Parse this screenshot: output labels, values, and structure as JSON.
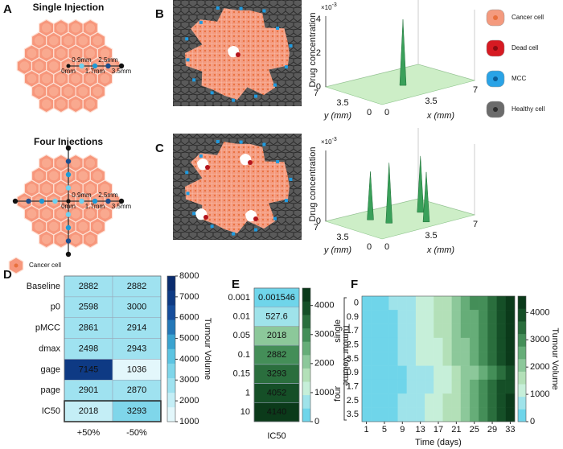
{
  "panel_labels": [
    "A",
    "B",
    "C",
    "D",
    "E",
    "F"
  ],
  "panel_a": {
    "single_title": "Single Injection",
    "four_title": "Four Injections",
    "distances": [
      "0mm",
      "0.9mm",
      "1.7mm",
      "2.5mm",
      "3.5mm"
    ],
    "legend": "Cancer cell"
  },
  "cell_legend": [
    "Cancer cell",
    "Dead cell",
    "MCC",
    "Healthy cell"
  ],
  "surface_plots": [
    {
      "z_label": "Drug concentration",
      "z_scale": "×10",
      "z_scale_exponent": "-3",
      "zticks": [
        "0",
        "2",
        "4"
      ],
      "y_label": "y (mm)",
      "x_label": "x (mm)",
      "yticks": [
        "7",
        "3.5",
        "0"
      ],
      "xticks": [
        "0",
        "3.5",
        "7"
      ]
    },
    {
      "z_label": "Drug concentration",
      "z_scale": "×10",
      "z_scale_exponent": "-3",
      "zticks": [
        "0"
      ],
      "y_label": "y (mm)",
      "x_label": "x (mm)",
      "yticks": [
        "7",
        "3.5",
        "0"
      ],
      "xticks": [
        "0",
        "3.5",
        "7"
      ]
    }
  ],
  "chart_data": [
    {
      "type": "heatmap",
      "y": [
        "Baseline",
        "p0",
        "pMCC",
        "dmax",
        "gage",
        "page",
        "IC50"
      ],
      "x": [
        "+50%",
        "-50%"
      ],
      "values": [
        [
          2882,
          2882
        ],
        [
          2598,
          3000
        ],
        [
          2861,
          2914
        ],
        [
          2498,
          2943
        ],
        [
          7145,
          1036
        ],
        [
          2901,
          2870
        ],
        [
          2018,
          3293
        ]
      ],
      "clim": [
        1000,
        8000
      ],
      "cticks": [
        1000,
        2000,
        3000,
        4000,
        5000,
        6000,
        7000,
        8000
      ],
      "colorbar_label": "Tumour Volume",
      "colors": [
        "#e3f7fb",
        "#c4eef6",
        "#9fe2f0",
        "#7fd6ea",
        "#5cc4e2",
        "#3aa3d0",
        "#2478b8",
        "#164d9c",
        "#0e3a84",
        "#0a2c6e"
      ]
    },
    {
      "type": "heatmap",
      "y": [
        "0.001",
        "0.01",
        "0.05",
        "0.1",
        "0.15",
        "1",
        "10"
      ],
      "values": [
        [
          0.001546
        ],
        [
          527.6
        ],
        [
          2018
        ],
        [
          2882
        ],
        [
          3293
        ],
        [
          4052
        ],
        [
          4140
        ]
      ],
      "xlabel": "IC50",
      "clim": [
        0,
        4600
      ],
      "cticks": [
        0,
        1000,
        2000,
        3000,
        4000
      ],
      "colorbar_label": "Tumour Volume",
      "colors": [
        "#6fd5ea",
        "#9fe3ea",
        "#c6efd9",
        "#b3e0b8",
        "#8cc89a",
        "#66ad78",
        "#448e58",
        "#2a6e3d",
        "#154f27",
        "#0b3a1a"
      ]
    },
    {
      "type": "heatmap",
      "x": [
        1,
        3,
        5,
        7,
        9,
        11,
        13,
        15,
        17,
        19,
        21,
        23,
        25,
        27,
        29,
        31,
        33
      ],
      "xlim": [
        0,
        34
      ],
      "xticks": [
        1,
        5,
        9,
        13,
        17,
        21,
        25,
        29,
        33
      ],
      "xlabel": "Time (days)",
      "y_groups": [
        {
          "name": "single",
          "y": [
            "0",
            "0.9",
            "1.7",
            "2.5",
            "3.5"
          ]
        },
        {
          "name": "four",
          "y": [
            "0.9",
            "1.7",
            "2.5",
            "3.5"
          ]
        }
      ],
      "values": [
        [
          50,
          150,
          300,
          500,
          700,
          900,
          1100,
          1300,
          1500,
          1800,
          2100,
          2400,
          2800,
          3200,
          3600,
          4000,
          4400
        ],
        [
          50,
          150,
          300,
          450,
          650,
          850,
          1050,
          1250,
          1450,
          1750,
          2050,
          2350,
          2750,
          3150,
          3550,
          3950,
          4300
        ],
        [
          50,
          140,
          280,
          430,
          620,
          820,
          1000,
          1200,
          1400,
          1700,
          2000,
          2300,
          2700,
          3100,
          3500,
          3900,
          4250
        ],
        [
          50,
          130,
          260,
          400,
          580,
          780,
          960,
          1150,
          1350,
          1650,
          1950,
          2250,
          2650,
          3050,
          3450,
          3850,
          4200
        ],
        [
          50,
          120,
          240,
          380,
          550,
          740,
          920,
          1100,
          1300,
          1600,
          1900,
          2200,
          2600,
          3000,
          3400,
          3800,
          4150
        ],
        [
          40,
          80,
          150,
          250,
          380,
          480,
          600,
          750,
          950,
          1200,
          1500,
          1850,
          2250,
          2700,
          3150,
          3600,
          4050
        ],
        [
          40,
          90,
          170,
          280,
          420,
          540,
          680,
          850,
          1050,
          1300,
          1600,
          1950,
          2350,
          2800,
          3250,
          3700,
          4100
        ],
        [
          40,
          100,
          200,
          320,
          470,
          620,
          780,
          950,
          1150,
          1400,
          1700,
          2050,
          2450,
          2900,
          3350,
          3800,
          4150
        ],
        [
          40,
          110,
          220,
          350,
          520,
          700,
          880,
          1050,
          1250,
          1500,
          1800,
          2150,
          2550,
          3000,
          3450,
          3900,
          4200
        ]
      ],
      "clim": [
        0,
        4600
      ],
      "cticks": [
        0,
        1000,
        2000,
        3000,
        4000
      ],
      "colorbar_label": "Tumour Volume",
      "colors": [
        "#6fd5ea",
        "#9fe3ea",
        "#c6efd9",
        "#b3e0b8",
        "#8cc89a",
        "#66ad78",
        "#448e58",
        "#2a6e3d",
        "#154f27",
        "#0b3a1a"
      ]
    }
  ]
}
